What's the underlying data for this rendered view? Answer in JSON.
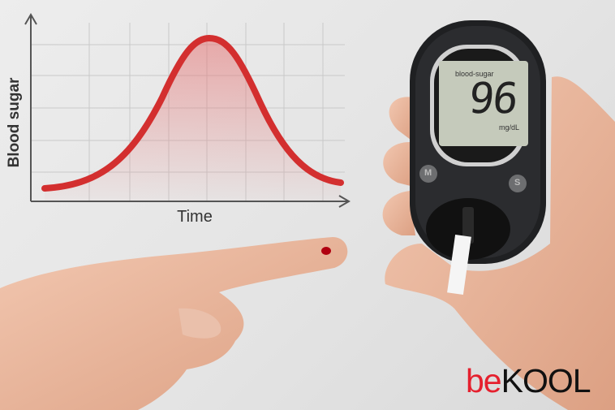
{
  "chart": {
    "ylabel": "Blood sugar",
    "xlabel": "Time",
    "curve_color": "#d32f2f",
    "grid": true
  },
  "chart_data": {
    "type": "line",
    "title": "",
    "xlabel": "Time",
    "ylabel": "Blood sugar",
    "grid": true
  },
  "meter": {
    "screen_label": "blood-sugar",
    "reading": "96",
    "unit": "mg/dL",
    "left_button": "M",
    "right_button": "S"
  },
  "logo": {
    "part1": "be",
    "part2": "KOOL",
    "brand_color": "#e5202e"
  }
}
